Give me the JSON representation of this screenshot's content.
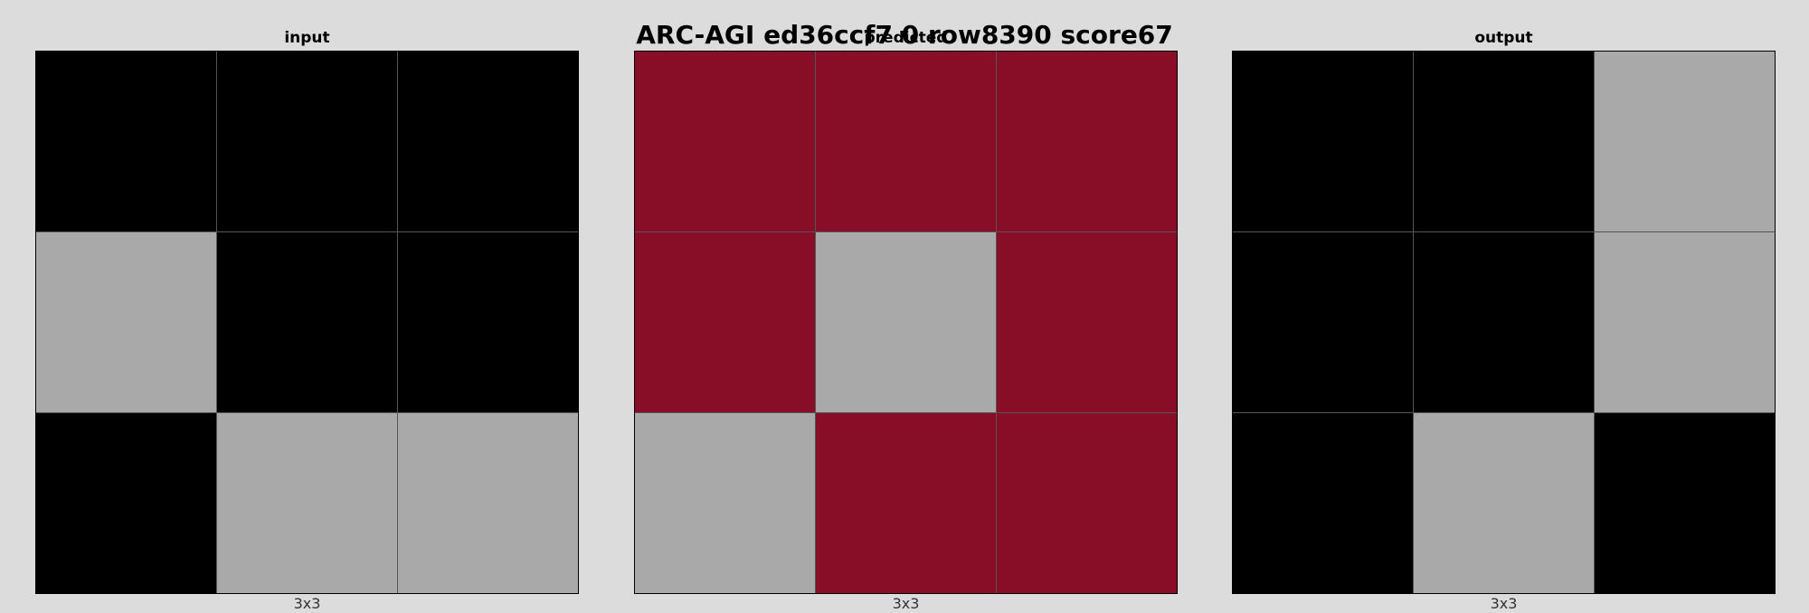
{
  "title": "ARC-AGI ed36ccf7 0 row8390 score67",
  "palette": {
    "black": "#000000",
    "gray": "#a9a9a9",
    "maroon": "#870e26"
  },
  "panels": [
    {
      "name": "input",
      "title": "input",
      "footer": "3x3",
      "grid": [
        [
          "black",
          "black",
          "black"
        ],
        [
          "gray",
          "black",
          "black"
        ],
        [
          "black",
          "gray",
          "gray"
        ]
      ]
    },
    {
      "name": "predicted",
      "title": "predicted",
      "footer": "3x3",
      "grid": [
        [
          "maroon",
          "maroon",
          "maroon"
        ],
        [
          "maroon",
          "gray",
          "maroon"
        ],
        [
          "gray",
          "maroon",
          "maroon"
        ]
      ]
    },
    {
      "name": "output",
      "title": "output",
      "footer": "3x3",
      "grid": [
        [
          "black",
          "black",
          "gray"
        ],
        [
          "black",
          "black",
          "gray"
        ],
        [
          "black",
          "gray",
          "black"
        ]
      ]
    }
  ]
}
